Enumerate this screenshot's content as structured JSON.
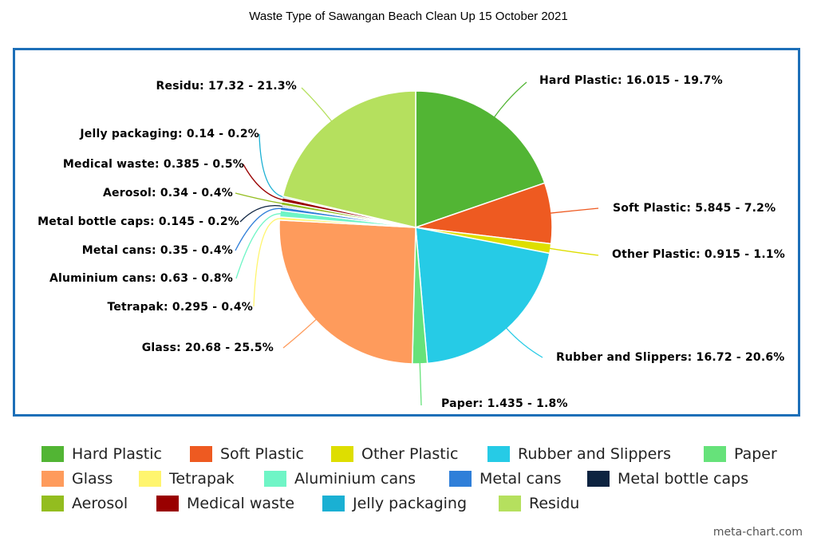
{
  "chart_data": {
    "type": "pie",
    "title": "Waste Type of Sawangan Beach Clean Up 15 October 2021",
    "slices": [
      {
        "name": "Hard Plastic",
        "value": 16.015,
        "percent": "19.7%",
        "label": "Hard Plastic: 16.015 - 19.7%",
        "color": "#52b534"
      },
      {
        "name": "Soft Plastic",
        "value": 5.845,
        "percent": "7.2%",
        "label": "Soft Plastic: 5.845 - 7.2%",
        "color": "#ee5a21"
      },
      {
        "name": "Other Plastic",
        "value": 0.915,
        "percent": "1.1%",
        "label": "Other Plastic: 0.915 - 1.1%",
        "color": "#dede00"
      },
      {
        "name": "Rubber and Slippers",
        "value": 16.72,
        "percent": "20.6%",
        "label": "Rubber and Slippers: 16.72 - 20.6%",
        "color": "#26cbe6"
      },
      {
        "name": "Paper",
        "value": 1.435,
        "percent": "1.8%",
        "label": "Paper: 1.435 - 1.8%",
        "color": "#66e27a"
      },
      {
        "name": "Glass",
        "value": 20.68,
        "percent": "25.5%",
        "label": "Glass: 20.68 - 25.5%",
        "color": "#fe9b5c"
      },
      {
        "name": "Tetrapak",
        "value": 0.295,
        "percent": "0.4%",
        "label": "Tetrapak: 0.295 - 0.4%",
        "color": "#fff56e"
      },
      {
        "name": "Aluminium cans",
        "value": 0.63,
        "percent": "0.8%",
        "label": "Aluminium cans: 0.63 - 0.8%",
        "color": "#6ff5c6"
      },
      {
        "name": "Metal cans",
        "value": 0.35,
        "percent": "0.4%",
        "label": "Metal cans: 0.35 - 0.4%",
        "color": "#2f7fd9"
      },
      {
        "name": "Metal bottle caps",
        "value": 0.145,
        "percent": "0.2%",
        "label": "Metal bottle caps: 0.145 - 0.2%",
        "color": "#0d2340"
      },
      {
        "name": "Aerosol",
        "value": 0.34,
        "percent": "0.4%",
        "label": "Aerosol: 0.34 - 0.4%",
        "color": "#93bd1f"
      },
      {
        "name": "Medical waste",
        "value": 0.385,
        "percent": "0.5%",
        "label": "Medical waste: 0.385 - 0.5%",
        "color": "#990000"
      },
      {
        "name": "Jelly packaging",
        "value": 0.14,
        "percent": "0.2%",
        "label": "Jelly packaging: 0.14 - 0.2%",
        "color": "#1ab0d3"
      },
      {
        "name": "Residu",
        "value": 17.32,
        "percent": "21.3%",
        "label": "Residu: 17.32 - 21.3%",
        "color": "#b5e05e"
      }
    ],
    "legend_position": "bottom"
  },
  "credit": "meta-chart.com"
}
